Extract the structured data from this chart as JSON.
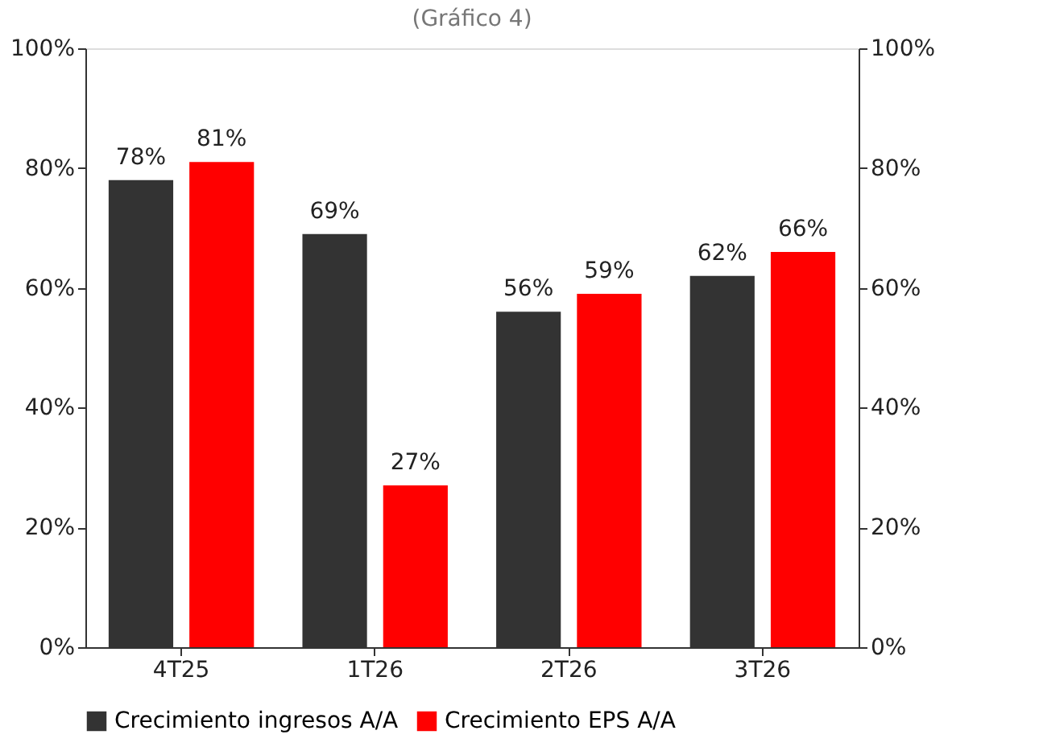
{
  "chart_data": {
    "type": "bar",
    "title": "(Gráfico 4)",
    "categories": [
      "4T25",
      "1T26",
      "2T26",
      "3T26"
    ],
    "series": [
      {
        "name": "Crecimiento ingresos A/A",
        "color": "#333333",
        "values": [
          78,
          69,
          56,
          62
        ],
        "value_labels": [
          "78%",
          "69%",
          "56%",
          "62%"
        ]
      },
      {
        "name": "Crecimiento EPS A/A",
        "color": "#ff0000",
        "values": [
          81,
          27,
          59,
          66
        ],
        "value_labels": [
          "81%",
          "27%",
          "59%",
          "66%"
        ]
      }
    ],
    "ylim": [
      0,
      100
    ],
    "yticks": [
      {
        "value": 0,
        "label": "0%"
      },
      {
        "value": 20,
        "label": "20%"
      },
      {
        "value": 40,
        "label": "40%"
      },
      {
        "value": 60,
        "label": "60%"
      },
      {
        "value": 80,
        "label": "80%"
      },
      {
        "value": 100,
        "label": "100%"
      }
    ],
    "y2lim": [
      0,
      100
    ],
    "y2ticks": [
      {
        "value": 0,
        "label": "0%"
      },
      {
        "value": 20,
        "label": "20%"
      },
      {
        "value": 40,
        "label": "40%"
      },
      {
        "value": 60,
        "label": "60%"
      },
      {
        "value": 80,
        "label": "80%"
      },
      {
        "value": 100,
        "label": "100%"
      }
    ],
    "grid": false,
    "legend": "bottom"
  }
}
